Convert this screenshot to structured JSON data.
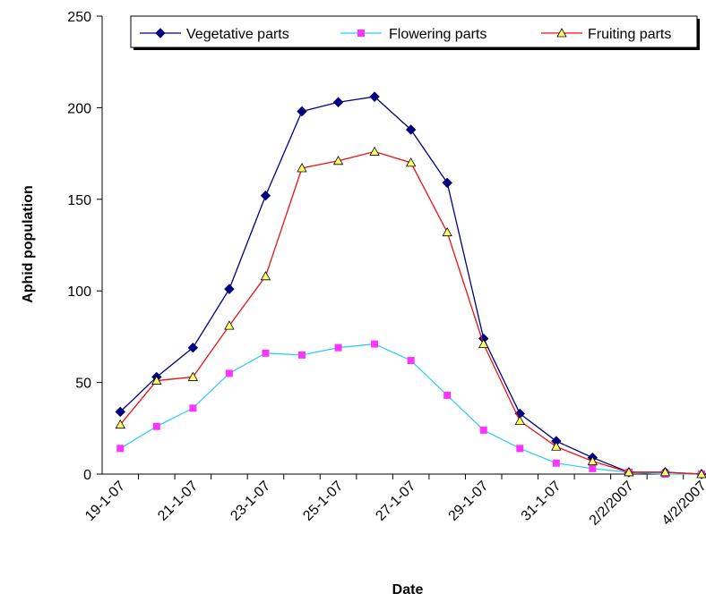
{
  "chart_data": {
    "type": "line",
    "xlabel": "Date",
    "ylabel": "Aphid population",
    "ylim": [
      0,
      250
    ],
    "yticks": [
      0,
      50,
      100,
      150,
      200,
      250
    ],
    "x_tick_labels": [
      "19-1-07",
      "21-1-07",
      "23-1-07",
      "25-1-07",
      "27-1-07",
      "29-1-07",
      "31-1-07",
      "2/2/2007",
      "4/2/2007"
    ],
    "grid": false,
    "legend_position": "top",
    "series": [
      {
        "name": "Vegetative parts",
        "color": "#00007f",
        "marker": "diamond",
        "values": [
          34,
          53,
          69,
          101,
          152,
          198,
          203,
          206,
          188,
          159,
          74,
          33,
          18,
          9,
          1,
          1,
          0
        ]
      },
      {
        "name": "Flowering parts",
        "color": "#33ccff",
        "marker_color": "#ff33ff",
        "marker": "square",
        "values": [
          14,
          26,
          36,
          55,
          66,
          65,
          69,
          71,
          62,
          43,
          24,
          14,
          6,
          3,
          1,
          0,
          0
        ]
      },
      {
        "name": "Fruiting parts",
        "color": "#ee1111",
        "marker_color": "#ffff66",
        "marker": "triangle",
        "values": [
          27,
          51,
          53,
          81,
          108,
          167,
          171,
          176,
          170,
          132,
          71,
          29,
          15,
          7,
          1,
          1,
          0
        ]
      }
    ]
  }
}
